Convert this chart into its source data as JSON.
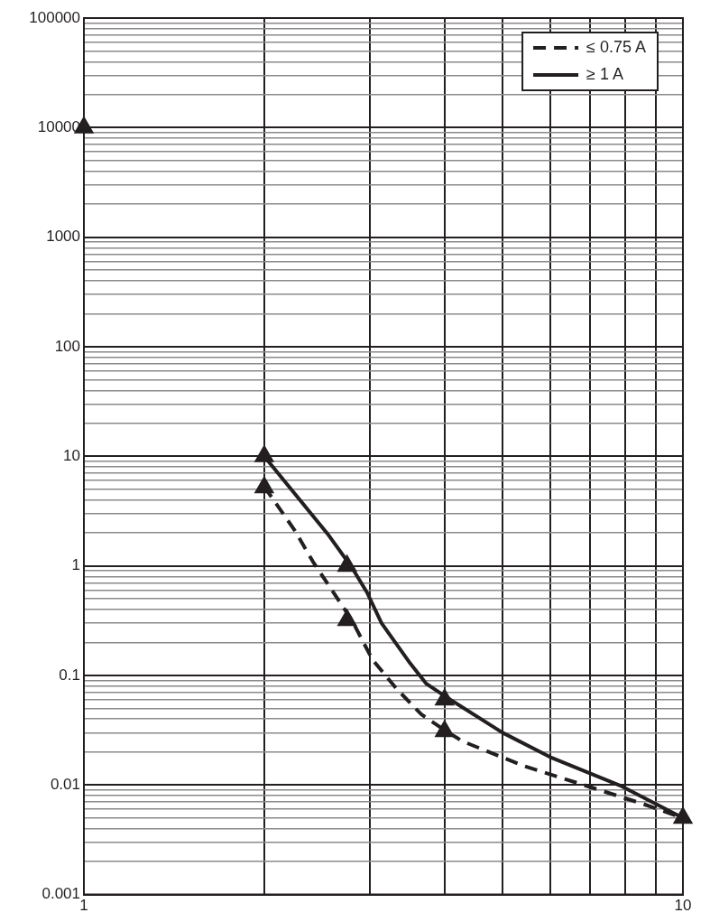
{
  "chart_data": {
    "type": "line",
    "log": "xy",
    "grid": true,
    "legend": "top right",
    "marker": "none",
    "xlim": [
      1,
      10
    ],
    "xticks": [
      1,
      {
        "value": 2,
        "label": null
      },
      {
        "value": 3,
        "label": null
      },
      {
        "value": 4,
        "label": null
      },
      {
        "value": 5,
        "label": null
      },
      {
        "value": 6,
        "label": null
      },
      {
        "value": 7,
        "label": null
      },
      {
        "value": 8,
        "label": null
      },
      {
        "value": 9,
        "label": null
      },
      10
    ],
    "ylim": [
      0.001,
      100000
    ],
    "yticks": [
      0.001,
      {
        "value": 0.002,
        "label": null
      },
      {
        "value": 0.003,
        "label": null
      },
      {
        "value": 0.004,
        "label": null
      },
      {
        "value": 0.005,
        "label": null
      },
      {
        "value": 0.006,
        "label": null
      },
      {
        "value": 0.007,
        "label": null
      },
      {
        "value": 0.008,
        "label": null
      },
      {
        "value": 0.009,
        "label": null
      },
      0.01,
      {
        "value": 0.02,
        "label": null
      },
      {
        "value": 0.03,
        "label": null
      },
      {
        "value": 0.04,
        "label": null
      },
      {
        "value": 0.05,
        "label": null
      },
      {
        "value": 0.06,
        "label": null
      },
      {
        "value": 0.07,
        "label": null
      },
      {
        "value": 0.08,
        "label": null
      },
      {
        "value": 0.09,
        "label": null
      },
      0.1,
      {
        "value": 0.2,
        "label": null
      },
      {
        "value": 0.3,
        "label": null
      },
      {
        "value": 0.4,
        "label": null
      },
      {
        "value": 0.5,
        "label": null
      },
      {
        "value": 0.6,
        "label": null
      },
      {
        "value": 0.7,
        "label": null
      },
      {
        "value": 0.8,
        "label": null
      },
      {
        "value": 0.9,
        "label": null
      },
      1,
      {
        "value": 2,
        "label": null
      },
      {
        "value": 3,
        "label": null
      },
      {
        "value": 4,
        "label": null
      },
      {
        "value": 5,
        "label": null
      },
      {
        "value": 6,
        "label": null
      },
      {
        "value": 7,
        "label": null
      },
      {
        "value": 8,
        "label": null
      },
      {
        "value": 9,
        "label": null
      },
      10,
      {
        "value": 20,
        "label": null
      },
      {
        "value": 30,
        "label": null
      },
      {
        "value": 40,
        "label": null
      },
      {
        "value": 50,
        "label": null
      },
      {
        "value": 60,
        "label": null
      },
      {
        "value": 70,
        "label": null
      },
      {
        "value": 80,
        "label": null
      },
      {
        "value": 90,
        "label": null
      },
      100,
      {
        "value": 200,
        "label": null
      },
      {
        "value": 300,
        "label": null
      },
      {
        "value": 400,
        "label": null
      },
      {
        "value": 500,
        "label": null
      },
      {
        "value": 600,
        "label": null
      },
      {
        "value": 700,
        "label": null
      },
      {
        "value": 800,
        "label": null
      },
      {
        "value": 900,
        "label": null
      },
      1000,
      {
        "value": 2000,
        "label": null
      },
      {
        "value": 3000,
        "label": null
      },
      {
        "value": 4000,
        "label": null
      },
      {
        "value": 5000,
        "label": null
      },
      {
        "value": 6000,
        "label": null
      },
      {
        "value": 7000,
        "label": null
      },
      {
        "value": 8000,
        "label": null
      },
      {
        "value": 9000,
        "label": null
      },
      10000,
      {
        "value": 20000,
        "label": null
      },
      {
        "value": 30000,
        "label": null
      },
      {
        "value": 40000,
        "label": null
      },
      {
        "value": 50000,
        "label": null
      },
      {
        "value": 60000,
        "label": null
      },
      {
        "value": 70000,
        "label": null
      },
      {
        "value": 80000,
        "label": null
      },
      {
        "value": 90000,
        "label": null
      },
      100000
    ],
    "series": [
      {
        "name": "≤ 0.75 A",
        "color": "#231f20",
        "line_style": "dashed",
        "x": [
          2,
          2.25,
          2.41,
          2.8,
          3.03,
          3.33,
          3.66,
          4.06,
          4.29,
          5.41,
          6.83,
          8.59,
          10
        ],
        "values": [
          5.3,
          2.1,
          1.1,
          0.32,
          0.14,
          0.075,
          0.044,
          0.03,
          0.025,
          0.015,
          0.01,
          0.0067,
          0.005
        ]
      },
      {
        "name": "≥ 1 A",
        "color": "#231f20",
        "line_style": "solid",
        "x": [
          2,
          2.55,
          2.8,
          2.97,
          3.14,
          3.49,
          3.73,
          4,
          5,
          6,
          7.85,
          10
        ],
        "values": [
          10,
          1.97,
          0.97,
          0.57,
          0.3,
          0.133,
          0.084,
          0.065,
          0.03,
          0.018,
          0.0099,
          0.005
        ]
      },
      {
        "type": "scatter",
        "color": "#231f20",
        "marker": "triangle",
        "x": [
          1,
          2,
          2.75,
          4,
          10
        ],
        "values": [
          10000,
          10,
          1,
          0.06,
          0.005
        ]
      },
      {
        "type": "scatter",
        "color": "#231f20",
        "marker": "triangle",
        "x": [
          2,
          2.75,
          4
        ],
        "values": [
          5.2,
          0.32,
          0.031
        ]
      }
    ]
  }
}
